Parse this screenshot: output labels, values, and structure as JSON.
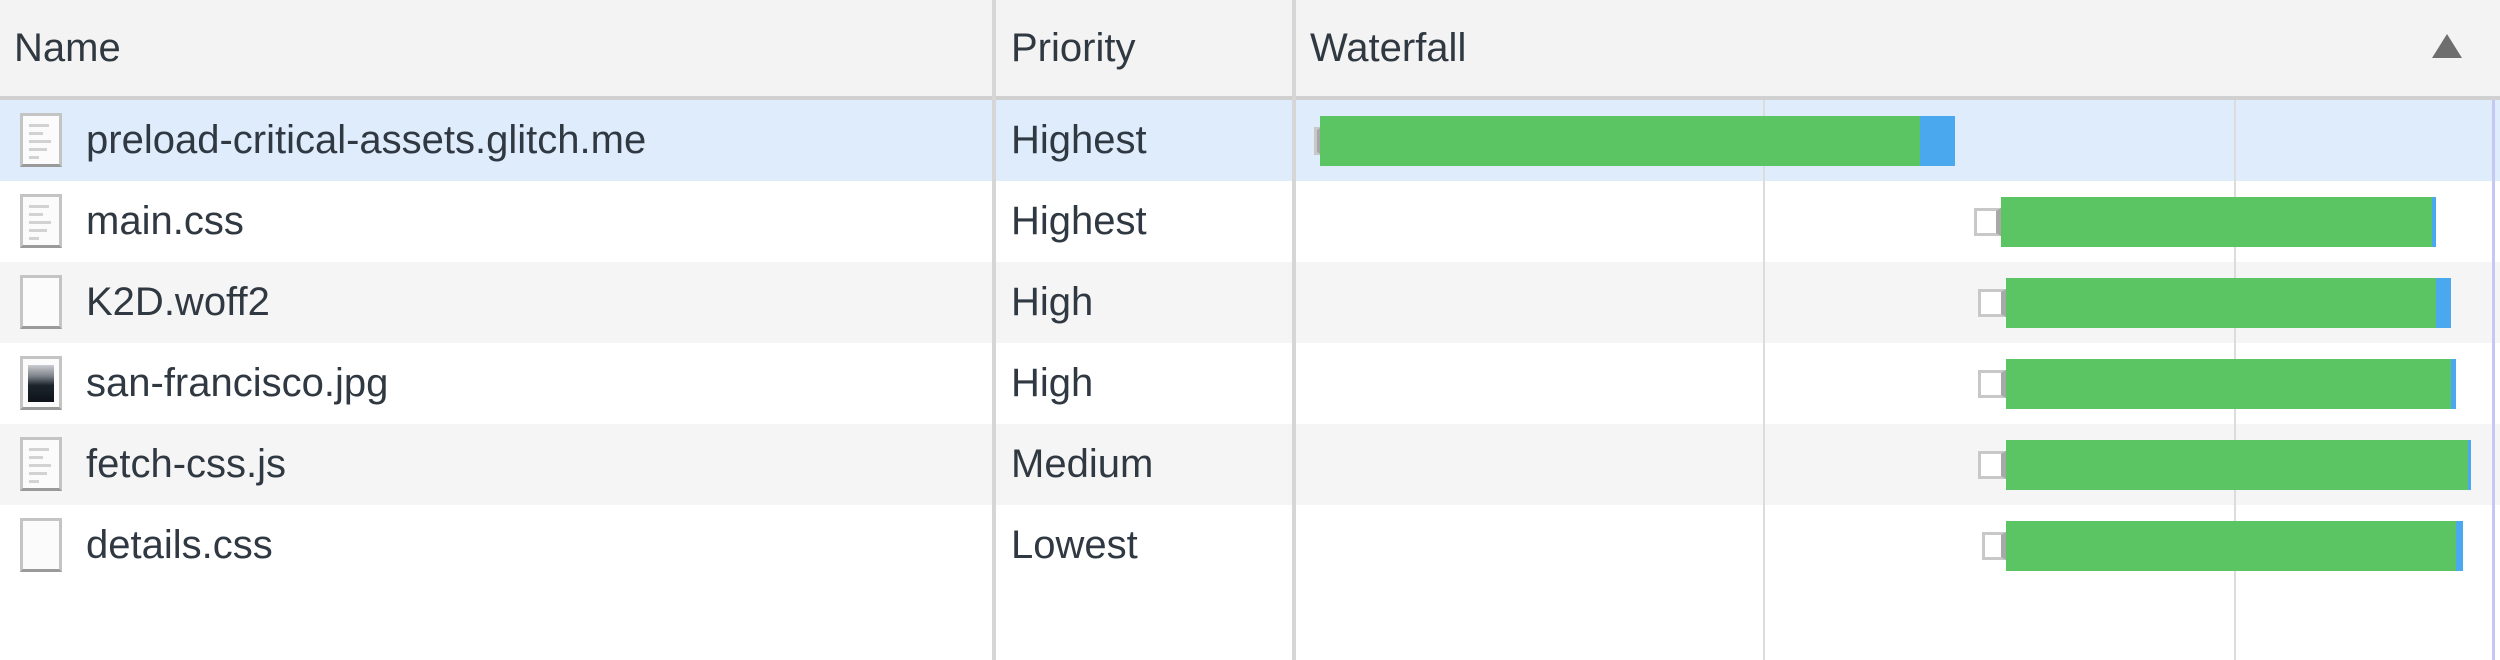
{
  "columns": {
    "name": "Name",
    "priority": "Priority",
    "waterfall": "Waterfall"
  },
  "sort": {
    "column": "waterfall",
    "direction": "ascending",
    "icon": "sort-triangle-up-icon"
  },
  "colors": {
    "receiving": "#5bc463",
    "downloading": "#4aa8ee",
    "selected_row": "#dfecfc",
    "alt_row": "#f5f5f5"
  },
  "waterfall_gridlines_percent": [
    39.1,
    78.3
  ],
  "requests": [
    {
      "name": "preload-critical-assets.glitch.me",
      "priority": "Highest",
      "icon": "document-icon",
      "selected": true,
      "timing_percent": {
        "queued": 1.7,
        "waiting": 2.2,
        "download": 52.2,
        "end": 55.1
      }
    },
    {
      "name": "main.css",
      "priority": "Highest",
      "icon": "document-icon",
      "selected": false,
      "timing_percent": {
        "queued": 56.7,
        "waiting": 58.9,
        "download": 94.8,
        "end": 95.2
      }
    },
    {
      "name": "K2D.woff2",
      "priority": "High",
      "icon": "blank-file-icon",
      "selected": false,
      "timing_percent": {
        "queued": 57.0,
        "waiting": 59.3,
        "download": 95.2,
        "end": 96.4
      }
    },
    {
      "name": "san-francisco.jpg",
      "priority": "High",
      "icon": "image-thumbnail-icon",
      "selected": false,
      "timing_percent": {
        "queued": 57.0,
        "waiting": 59.3,
        "download": 96.4,
        "end": 96.8
      }
    },
    {
      "name": "fetch-css.js",
      "priority": "Medium",
      "icon": "document-icon",
      "selected": false,
      "timing_percent": {
        "queued": 57.0,
        "waiting": 59.3,
        "download": 97.8,
        "end": 98.0
      }
    },
    {
      "name": "details.css",
      "priority": "Lowest",
      "icon": "blank-file-icon",
      "selected": false,
      "timing_percent": {
        "queued": 57.3,
        "waiting": 59.3,
        "download": 96.8,
        "end": 97.4
      }
    }
  ]
}
